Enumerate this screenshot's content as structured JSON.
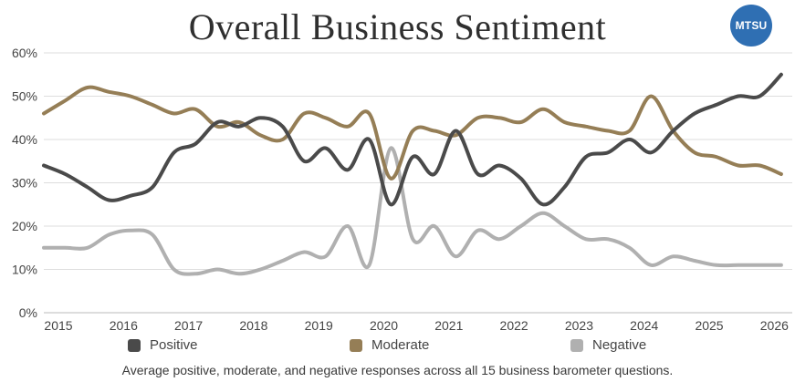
{
  "header": {
    "title": "Overall Business Sentiment",
    "logo_text": "MTSU"
  },
  "footnote": "Average positive, moderate, and negative responses across all 15 business barometer questions.",
  "colors": {
    "positive": "#4a4a4a",
    "moderate": "#957e56",
    "negative": "#b0b0b0",
    "grid": "#dddddd",
    "logo": "#2f6fb3"
  },
  "chart_data": {
    "type": "line",
    "title": "Overall Business Sentiment",
    "xlabel": "",
    "ylabel": "",
    "xlim": [
      2015,
      2026.5
    ],
    "ylim": [
      0,
      60
    ],
    "x_ticks": [
      "2015",
      "2016",
      "2017",
      "2018",
      "2019",
      "2020",
      "2021",
      "2022",
      "2023",
      "2024",
      "2025",
      "2026"
    ],
    "y_ticks": [
      "0%",
      "10%",
      "20%",
      "30%",
      "40%",
      "50%",
      "60%"
    ],
    "grid": true,
    "legend_position": "bottom",
    "series": [
      {
        "name": "Positive",
        "x": [
          2015.0,
          2015.33,
          2015.67,
          2016.0,
          2016.33,
          2016.67,
          2017.0,
          2017.33,
          2017.67,
          2018.0,
          2018.33,
          2018.67,
          2019.0,
          2019.33,
          2019.67,
          2020.0,
          2020.33,
          2020.67,
          2021.0,
          2021.33,
          2021.67,
          2022.0,
          2022.33,
          2022.67,
          2023.0,
          2023.33,
          2023.67,
          2024.0,
          2024.33,
          2024.67,
          2025.0,
          2025.33,
          2025.67,
          2026.0,
          2026.33
        ],
        "values": [
          34,
          32,
          29,
          26,
          27,
          29,
          37,
          39,
          44,
          43,
          45,
          43,
          35,
          38,
          33,
          40,
          25,
          36,
          32,
          42,
          32,
          34,
          31,
          25,
          29,
          36,
          37,
          40,
          37,
          42,
          46,
          48,
          50,
          50,
          55
        ]
      },
      {
        "name": "Moderate",
        "x": [
          2015.0,
          2015.33,
          2015.67,
          2016.0,
          2016.33,
          2016.67,
          2017.0,
          2017.33,
          2017.67,
          2018.0,
          2018.33,
          2018.67,
          2019.0,
          2019.33,
          2019.67,
          2020.0,
          2020.33,
          2020.67,
          2021.0,
          2021.33,
          2021.67,
          2022.0,
          2022.33,
          2022.67,
          2023.0,
          2023.33,
          2023.67,
          2024.0,
          2024.33,
          2024.67,
          2025.0,
          2025.33,
          2025.67,
          2026.0,
          2026.33
        ],
        "values": [
          46,
          49,
          52,
          51,
          50,
          48,
          46,
          47,
          43,
          44,
          41,
          40,
          46,
          45,
          43,
          46,
          31,
          42,
          42,
          41,
          45,
          45,
          44,
          47,
          44,
          43,
          42,
          42,
          50,
          42,
          37,
          36,
          34,
          34,
          32
        ]
      },
      {
        "name": "Negative",
        "x": [
          2015.0,
          2015.33,
          2015.67,
          2016.0,
          2016.33,
          2016.67,
          2017.0,
          2017.33,
          2017.67,
          2018.0,
          2018.33,
          2018.67,
          2019.0,
          2019.33,
          2019.67,
          2020.0,
          2020.33,
          2020.67,
          2021.0,
          2021.33,
          2021.67,
          2022.0,
          2022.33,
          2022.67,
          2023.0,
          2023.33,
          2023.67,
          2024.0,
          2024.33,
          2024.67,
          2025.0,
          2025.33,
          2025.67,
          2026.0,
          2026.33
        ],
        "values": [
          15,
          15,
          15,
          18,
          19,
          18,
          10,
          9,
          10,
          9,
          10,
          12,
          14,
          13,
          20,
          11,
          38,
          17,
          20,
          13,
          19,
          17,
          20,
          23,
          20,
          17,
          17,
          15,
          11,
          13,
          12,
          11,
          11,
          11,
          11
        ]
      }
    ]
  }
}
